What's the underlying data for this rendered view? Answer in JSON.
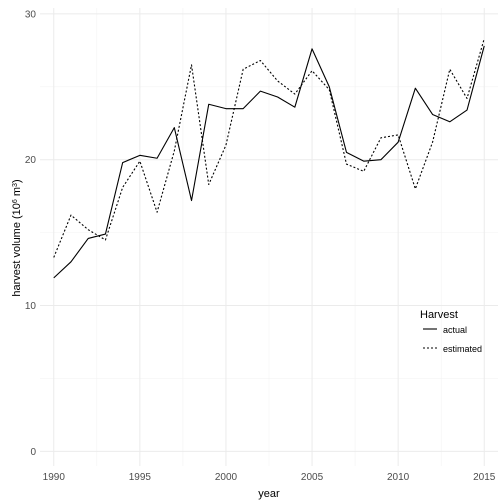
{
  "chart_data": {
    "type": "line",
    "title": "",
    "xlabel": "year",
    "ylabel_main": "harvest volume (10",
    "ylabel_sup1": "6",
    "ylabel_mid": " m",
    "ylabel_sup2": "3",
    "ylabel_end": ")",
    "xlim": [
      1989.2,
      2015.8
    ],
    "ylim": [
      -1.0,
      30.4
    ],
    "x_ticks": [
      1990,
      1995,
      2000,
      2005,
      2010,
      2015
    ],
    "y_ticks": [
      0,
      10,
      20,
      30
    ],
    "grid": true,
    "legend": {
      "title": "Harvest",
      "placement": "right"
    },
    "x": [
      1990,
      1991,
      1992,
      1993,
      1994,
      1995,
      1996,
      1997,
      1998,
      1999,
      2000,
      2001,
      2002,
      2003,
      2004,
      2005,
      2006,
      2007,
      2008,
      2009,
      2010,
      2011,
      2012,
      2013,
      2014,
      2015
    ],
    "series": [
      {
        "name": "actual",
        "dash": "solid",
        "values": [
          11.9,
          13.0,
          14.6,
          14.9,
          19.8,
          20.3,
          20.1,
          22.2,
          17.2,
          23.8,
          23.5,
          23.5,
          24.7,
          24.3,
          23.6,
          27.6,
          25.0,
          20.5,
          19.9,
          20.0,
          21.2,
          24.9,
          23.1,
          22.6,
          23.4,
          27.8
        ]
      },
      {
        "name": "estimated",
        "dash": "dotted",
        "values": [
          13.3,
          16.2,
          15.2,
          14.5,
          18.1,
          19.9,
          16.4,
          20.6,
          26.5,
          18.3,
          21.0,
          26.2,
          26.8,
          25.4,
          24.5,
          26.1,
          24.8,
          19.7,
          19.2,
          21.5,
          21.7,
          18.0,
          21.2,
          26.2,
          24.2,
          28.3
        ]
      }
    ]
  }
}
